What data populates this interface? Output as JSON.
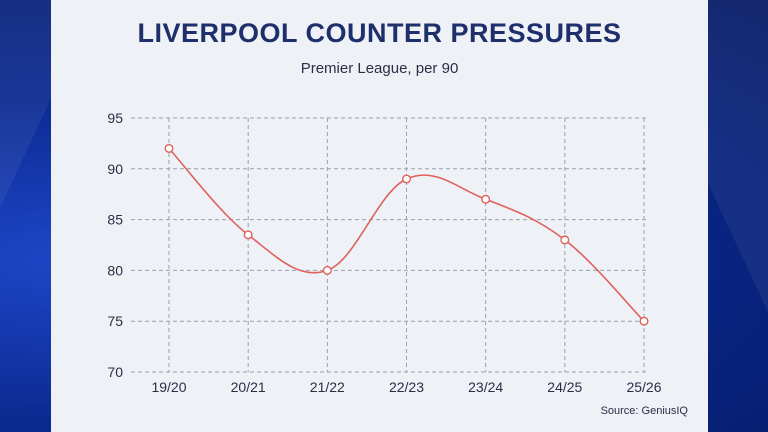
{
  "title": "LIVERPOOL COUNTER PRESSURES",
  "subtitle": "Premier League, per 90",
  "source": "Source: GeniusIQ",
  "colors": {
    "line": "#e0605c",
    "grid": "#9aa0ad",
    "panel": "#eef1f6",
    "title": "#1f2f6b"
  },
  "chart_data": {
    "type": "line",
    "title": "LIVERPOOL COUNTER PRESSURES",
    "subtitle": "Premier League, per 90",
    "categories": [
      "19/20",
      "20/21",
      "21/22",
      "22/23",
      "23/24",
      "24/25",
      "25/26"
    ],
    "series": [
      {
        "values": [
          92,
          83.5,
          80,
          89,
          87,
          83,
          75
        ]
      }
    ],
    "ylim": [
      70,
      95
    ],
    "yticks": [
      70,
      75,
      80,
      85,
      90,
      95
    ],
    "grid": true,
    "grid_style": "dashed",
    "legend": "none",
    "smooth": true
  }
}
